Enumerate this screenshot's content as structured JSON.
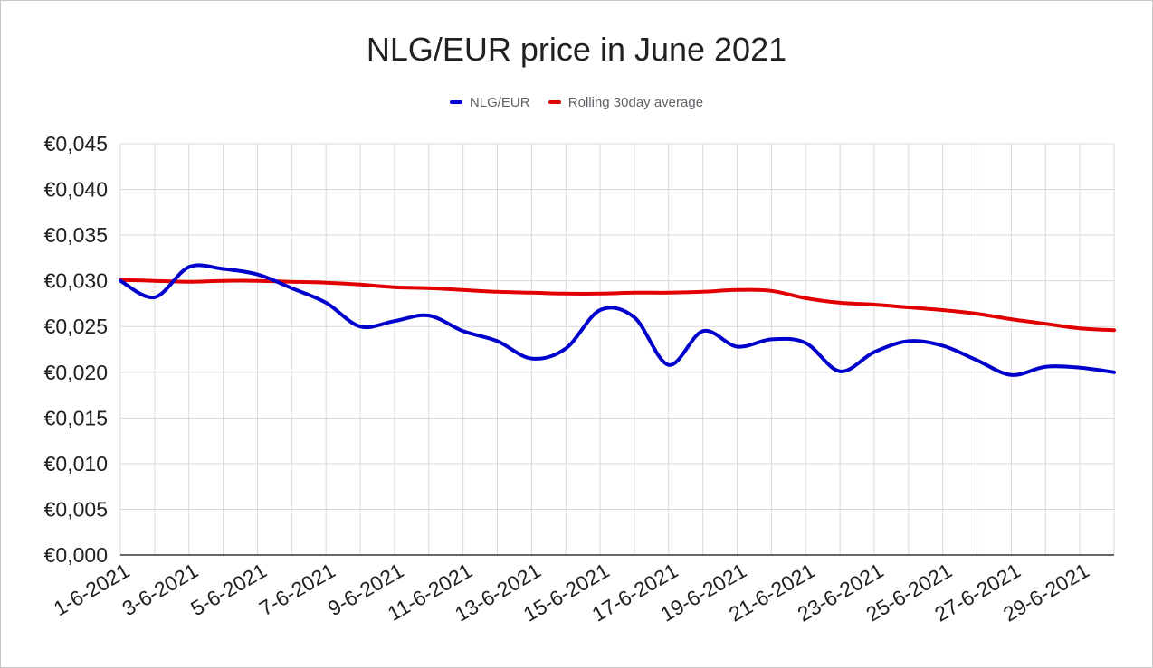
{
  "chart_data": {
    "type": "line",
    "title": "NLG/EUR price in June 2021",
    "xlabel": "",
    "ylabel": "",
    "legend_position": "top-center",
    "grid": true,
    "ylim": [
      0,
      0.045
    ],
    "y_ticks": [
      "€0,000",
      "€0,005",
      "€0,010",
      "€0,015",
      "€0,020",
      "€0,025",
      "€0,030",
      "€0,035",
      "€0,040",
      "€0,045"
    ],
    "y_tick_values": [
      0,
      0.005,
      0.01,
      0.015,
      0.02,
      0.025,
      0.03,
      0.035,
      0.04,
      0.045
    ],
    "x": [
      "1-6-2021",
      "2-6-2021",
      "3-6-2021",
      "4-6-2021",
      "5-6-2021",
      "6-6-2021",
      "7-6-2021",
      "8-6-2021",
      "9-6-2021",
      "10-6-2021",
      "11-6-2021",
      "12-6-2021",
      "13-6-2021",
      "14-6-2021",
      "15-6-2021",
      "16-6-2021",
      "17-6-2021",
      "18-6-2021",
      "19-6-2021",
      "20-6-2021",
      "21-6-2021",
      "22-6-2021",
      "23-6-2021",
      "24-6-2021",
      "25-6-2021",
      "26-6-2021",
      "27-6-2021",
      "28-6-2021",
      "29-6-2021",
      "30-6-2021"
    ],
    "x_tick_labels": [
      "1-6-2021",
      "3-6-2021",
      "5-6-2021",
      "7-6-2021",
      "9-6-2021",
      "11-6-2021",
      "13-6-2021",
      "15-6-2021",
      "17-6-2021",
      "19-6-2021",
      "21-6-2021",
      "23-6-2021",
      "25-6-2021",
      "27-6-2021",
      "29-6-2021"
    ],
    "series": [
      {
        "name": "NLG/EUR",
        "color": "#0000cc",
        "values": [
          0.03,
          0.0282,
          0.0315,
          0.0313,
          0.0307,
          0.0292,
          0.0276,
          0.025,
          0.0256,
          0.0262,
          0.0245,
          0.0234,
          0.0215,
          0.0226,
          0.0268,
          0.026,
          0.0208,
          0.0245,
          0.0228,
          0.0236,
          0.0232,
          0.0201,
          0.0222,
          0.0234,
          0.0229,
          0.0213,
          0.0197,
          0.0206,
          0.0205,
          0.02
        ]
      },
      {
        "name": "Rolling 30day average",
        "color": "#e00000",
        "values": [
          0.0301,
          0.03,
          0.0299,
          0.03,
          0.03,
          0.0299,
          0.0298,
          0.0296,
          0.0293,
          0.0292,
          0.029,
          0.0288,
          0.0287,
          0.0286,
          0.0286,
          0.0287,
          0.0287,
          0.0288,
          0.029,
          0.0289,
          0.0281,
          0.0276,
          0.0274,
          0.0271,
          0.0268,
          0.0264,
          0.0258,
          0.0253,
          0.0248,
          0.0246
        ]
      }
    ]
  }
}
